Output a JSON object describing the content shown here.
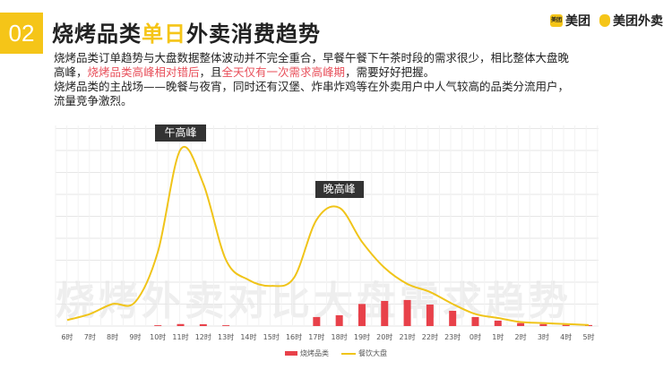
{
  "header": {
    "number": "02",
    "title_part1": "烧烤品类",
    "title_highlight": "单日",
    "title_part2": "外卖消费趋势"
  },
  "logos": {
    "meituan": "美团",
    "meituan_icon": "美团",
    "waimai": "美团外卖"
  },
  "description": {
    "line1": "烧烤品类订单趋势与大盘数据整体波动并不完全重合，早餐午餐下午茶时段的需求很少，相比整体大盘晚",
    "line2_a": "高峰，",
    "line2_red": "烧烤品类高峰相对错后",
    "line2_b": "，且",
    "line2_red2": "全天仅有一次需求高峰期",
    "line2_c": "，需要好好把握。",
    "line3": "烧烤品类的主战场——晚餐与夜宵，同时还有汉堡、炸串炸鸡等在外卖用户中人气较高的品类分流用户，",
    "line4": "流量竞争激烈。"
  },
  "chart_data": {
    "type": "bar+line",
    "watermark": "烧烤外卖对比大盘需求趋势",
    "categories": [
      "6时",
      "7时",
      "8时",
      "9时",
      "10时",
      "11时",
      "12时",
      "13时",
      "14时",
      "15时",
      "16时",
      "17时",
      "18时",
      "19时",
      "20时",
      "21时",
      "22时",
      "23时",
      "0时",
      "1时",
      "2时",
      "3时",
      "4时",
      "5时"
    ],
    "series": [
      {
        "name": "烧烤品类",
        "type": "bar",
        "color": "#e8414a",
        "values": [
          0,
          0,
          0,
          0,
          0.4,
          1,
          0.9,
          0.4,
          0,
          0,
          0,
          4.5,
          5.4,
          11,
          12.5,
          13,
          10.7,
          7.6,
          4.5,
          2.7,
          1.5,
          1,
          0.6,
          0.5
        ]
      },
      {
        "name": "餐饮大盘",
        "type": "line",
        "color": "#f0c419",
        "values": [
          3,
          6,
          11,
          12,
          37,
          88,
          71,
          33,
          23,
          20,
          24,
          53,
          59,
          42,
          29,
          21,
          17,
          11,
          6,
          4,
          2,
          1.5,
          1,
          0.5
        ]
      }
    ],
    "ylim": [
      0,
      100
    ],
    "grid": true,
    "legend": "bottom",
    "annotations": [
      {
        "label": "午高峰",
        "category": "11时"
      },
      {
        "label": "晚高峰",
        "category": "18时"
      }
    ]
  }
}
